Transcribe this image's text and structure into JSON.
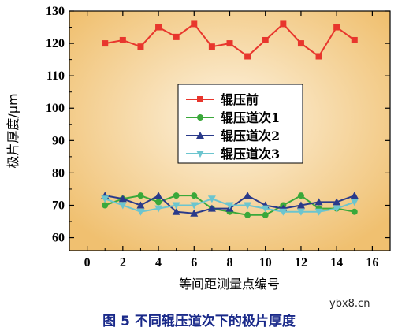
{
  "caption": "图 5    不同辊压道次下的极片厚度",
  "watermark": "ybx8.cn",
  "colors": {
    "bg_center": "#fdf3e0",
    "bg_edge": "#f0c070"
  },
  "chart_data": {
    "type": "line",
    "xlabel": "等间距测量点编号",
    "ylabel": "极片厚度/μm",
    "xlim": [
      -1,
      17
    ],
    "ylim": [
      56,
      130
    ],
    "xticks": [
      0,
      2,
      4,
      6,
      8,
      10,
      12,
      14,
      16
    ],
    "yticks": [
      60,
      70,
      80,
      90,
      100,
      110,
      120,
      130
    ],
    "legend_position": "center",
    "x": [
      1,
      2,
      3,
      4,
      5,
      6,
      7,
      8,
      9,
      10,
      11,
      12,
      13,
      14,
      15
    ],
    "series": [
      {
        "name": "辊压前",
        "color": "#e8362d",
        "marker": "square",
        "values": [
          120,
          121,
          119,
          125,
          122,
          126,
          119,
          120,
          116,
          121,
          126,
          120,
          116,
          125,
          121
        ]
      },
      {
        "name": "辊压道次1",
        "color": "#3aa83a",
        "marker": "circle",
        "values": [
          70,
          72,
          73,
          71,
          73,
          73,
          69,
          68,
          67,
          67,
          70,
          73,
          69,
          69,
          68
        ]
      },
      {
        "name": "辊压道次2",
        "color": "#2a3a8a",
        "marker": "triangle-up",
        "values": [
          73,
          72,
          70,
          73,
          68,
          67.5,
          69,
          69,
          73,
          70,
          69,
          70,
          71,
          71,
          73
        ]
      },
      {
        "name": "辊压道次3",
        "color": "#6cc5cf",
        "marker": "triangle-down",
        "values": [
          72,
          70,
          68,
          69,
          70,
          70,
          72,
          70,
          70,
          69,
          68,
          68,
          68,
          69,
          71
        ]
      }
    ]
  }
}
